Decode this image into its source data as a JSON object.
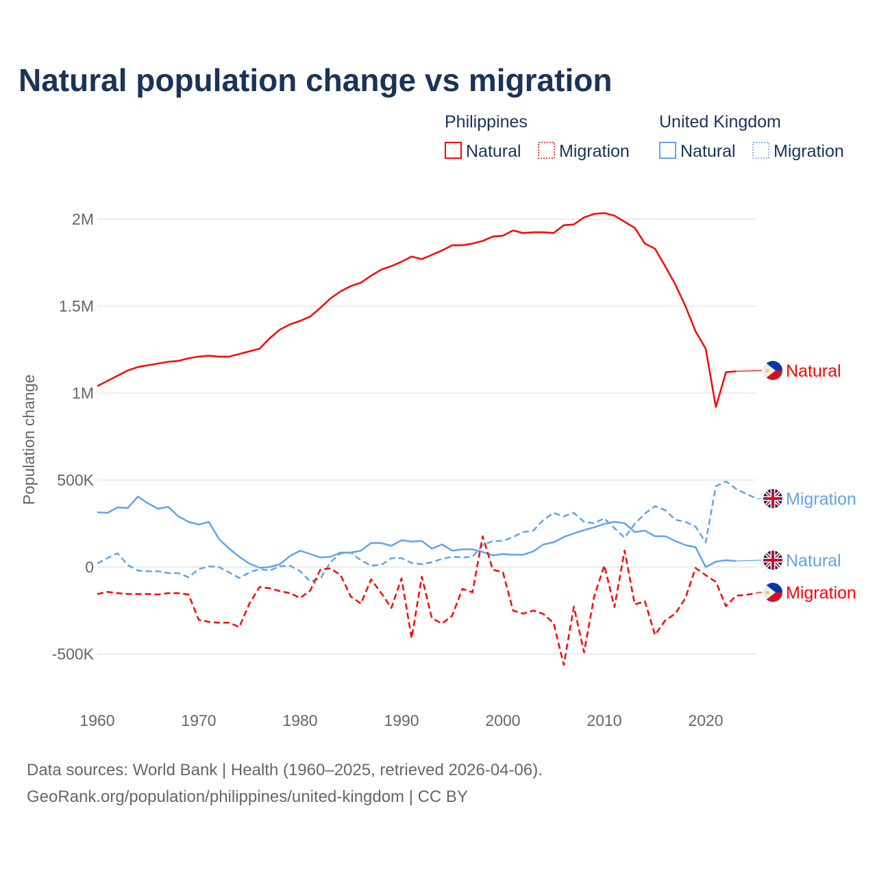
{
  "title": "Natural population change vs migration",
  "legend": {
    "groups": [
      {
        "name": "Philippines",
        "items": [
          "Natural",
          "Migration"
        ]
      },
      {
        "name": "United Kingdom",
        "items": [
          "Natural",
          "Migration"
        ]
      }
    ]
  },
  "source_lines": [
    "Data sources: World Bank | Health (1960–2025, retrieved 2026-04-06).",
    "GeoRank.org/population/philippines/united-kingdom | CC BY"
  ],
  "colors": {
    "philippines": "#ff0000",
    "united_kingdom": "#5fa4ea",
    "title": "#1a3358"
  },
  "chart_data": {
    "type": "line",
    "title": "Natural population change vs migration",
    "xlabel": "",
    "ylabel": "Population change",
    "xlim": [
      1960,
      2025
    ],
    "ylim": [
      -600000,
      2150000
    ],
    "x_ticks": [
      1960,
      1970,
      1980,
      1990,
      2000,
      2010,
      2020
    ],
    "x_tick_labels": [
      "1960",
      "1970",
      "1980",
      "1990",
      "2000",
      "2010",
      "2020"
    ],
    "y_ticks": [
      -500000,
      0,
      500000,
      1000000,
      1500000,
      2000000
    ],
    "y_tick_labels": [
      "-500K",
      "0",
      "500K",
      "1M",
      "1.5M",
      "2M"
    ],
    "grid": true,
    "legend_position": "top-right",
    "series": [
      {
        "name": "Philippines Natural",
        "label": "Natural",
        "country": "philippines",
        "dash": "solid",
        "start": 1960,
        "values": [
          1040000,
          1070000,
          1100000,
          1130000,
          1150000,
          1160000,
          1170000,
          1180000,
          1185000,
          1200000,
          1210000,
          1215000,
          1210000,
          1210000,
          1225000,
          1240000,
          1255000,
          1315000,
          1365000,
          1395000,
          1415000,
          1440000,
          1490000,
          1545000,
          1585000,
          1615000,
          1635000,
          1675000,
          1710000,
          1730000,
          1755000,
          1785000,
          1770000,
          1795000,
          1820000,
          1850000,
          1850000,
          1860000,
          1875000,
          1900000,
          1905000,
          1935000,
          1920000,
          1925000,
          1925000,
          1920000,
          1965000,
          1970000,
          2010000,
          2030000,
          2035000,
          2020000,
          1985000,
          1950000,
          1860000,
          1830000,
          1730000,
          1625000,
          1500000,
          1355000,
          1255000,
          920000,
          1120000,
          1125000
        ]
      },
      {
        "name": "United Kingdom Migration",
        "label": "Migration",
        "country": "united_kingdom",
        "dash": "dashed",
        "start": 1960,
        "values": [
          20000,
          51000,
          79000,
          12000,
          -20000,
          -24000,
          -24000,
          -35000,
          -35000,
          -59000,
          -12000,
          4000,
          0,
          -31000,
          -63000,
          -31000,
          -12000,
          -20000,
          4000,
          8000,
          -24000,
          -83000,
          -67000,
          28000,
          79000,
          83000,
          39000,
          8000,
          12000,
          51000,
          51000,
          24000,
          16000,
          28000,
          47000,
          59000,
          55000,
          59000,
          126000,
          150000,
          150000,
          173000,
          201000,
          209000,
          272000,
          311000,
          291000,
          311000,
          260000,
          252000,
          280000,
          224000,
          169000,
          248000,
          307000,
          350000,
          327000,
          272000,
          260000,
          232000,
          142000,
          465000,
          492000,
          449000,
          421000,
          394000
        ]
      },
      {
        "name": "United Kingdom Natural",
        "label": "Natural",
        "country": "united_kingdom",
        "dash": "solid",
        "start": 1960,
        "values": [
          315000,
          311000,
          343000,
          339000,
          405000,
          366000,
          335000,
          346000,
          291000,
          260000,
          244000,
          260000,
          161000,
          106000,
          59000,
          20000,
          -4000,
          0,
          16000,
          63000,
          94000,
          75000,
          55000,
          59000,
          83000,
          83000,
          94000,
          138000,
          138000,
          122000,
          154000,
          146000,
          150000,
          106000,
          130000,
          94000,
          102000,
          102000,
          87000,
          67000,
          75000,
          71000,
          71000,
          90000,
          130000,
          142000,
          173000,
          193000,
          213000,
          228000,
          248000,
          260000,
          252000,
          201000,
          209000,
          177000,
          177000,
          150000,
          126000,
          114000,
          0,
          31000,
          39000,
          35000
        ]
      },
      {
        "name": "Philippines Migration",
        "label": "Migration",
        "country": "philippines",
        "dash": "dashed",
        "start": 1960,
        "values": [
          -155000,
          -143000,
          -150000,
          -155000,
          -155000,
          -155000,
          -158000,
          -150000,
          -150000,
          -158000,
          -303000,
          -315000,
          -320000,
          -320000,
          -345000,
          -210000,
          -115000,
          -122000,
          -138000,
          -150000,
          -178000,
          -135000,
          -15000,
          -8000,
          -47000,
          -170000,
          -210000,
          -70000,
          -150000,
          -235000,
          -65000,
          -410000,
          -55000,
          -295000,
          -325000,
          -280000,
          -125000,
          -145000,
          177000,
          -15000,
          -30000,
          -250000,
          -268000,
          -250000,
          -270000,
          -322000,
          -563000,
          -228000,
          -490000,
          -170000,
          10000,
          -230000,
          95000,
          -215000,
          -197000,
          -390000,
          -307000,
          -268000,
          -178000,
          -5000,
          -47000,
          -85000,
          -225000,
          -165000,
          -160000,
          -150000
        ]
      }
    ]
  }
}
